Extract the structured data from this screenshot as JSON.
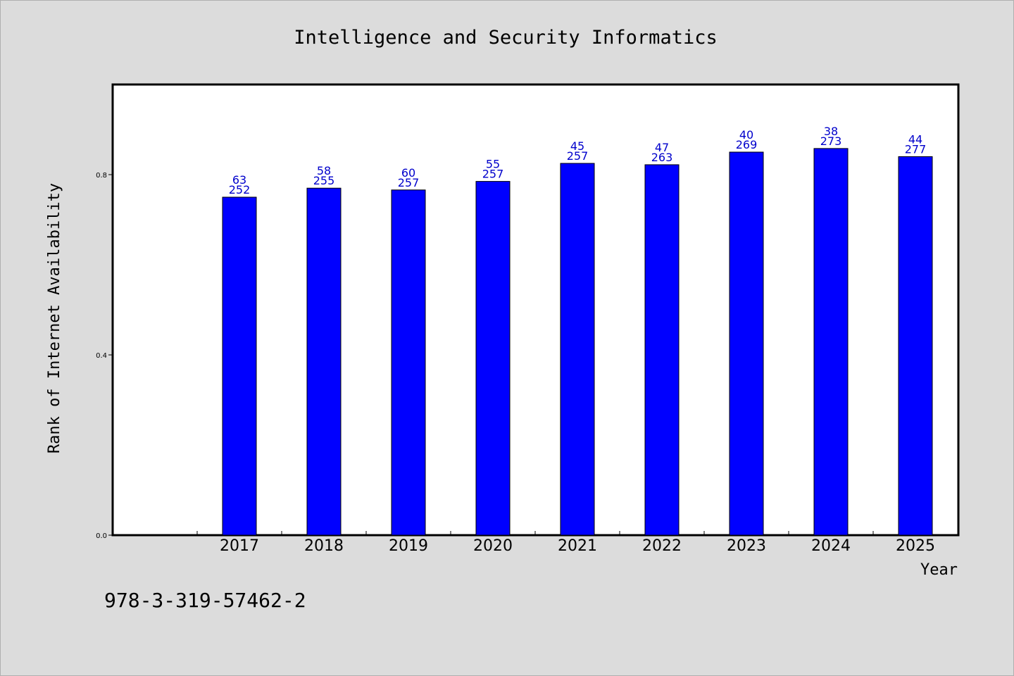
{
  "footer": {
    "isbn": "978-3-319-57462-2"
  },
  "chart_data": {
    "type": "bar",
    "title": "Intelligence and Security Informatics",
    "xlabel": "Year",
    "ylabel": "Rank of Internet Availability",
    "categories": [
      "2017",
      "2018",
      "2019",
      "2020",
      "2021",
      "2022",
      "2023",
      "2024",
      "2025"
    ],
    "values": [
      0.75,
      0.77,
      0.766,
      0.785,
      0.825,
      0.822,
      0.85,
      0.858,
      0.84
    ],
    "label_rank": [
      "63",
      "58",
      "60",
      "55",
      "45",
      "47",
      "40",
      "38",
      "44"
    ],
    "label_total": [
      "252",
      "255",
      "257",
      "257",
      "257",
      "263",
      "269",
      "273",
      "277"
    ],
    "ylim": [
      0,
      0.8
    ],
    "yticks": [
      "0.0",
      "0.4",
      "0.8"
    ],
    "yticks_values": [
      0,
      0.4,
      0.8
    ],
    "legend": "none",
    "grid": false,
    "colors": {
      "bar": "#0000ff",
      "bar_border": "#000000",
      "data_label": "#0000cc",
      "plot_bg": "#ffffff",
      "page_bg": "#dcdcdc"
    }
  }
}
